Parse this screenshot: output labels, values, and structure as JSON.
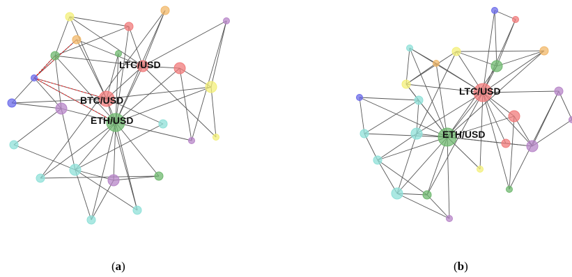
{
  "captions": {
    "a": {
      "open": "(",
      "letter": "a",
      "close": ")"
    },
    "b": {
      "open": "(",
      "letter": "b",
      "close": ")"
    }
  },
  "colors": {
    "red": "#f07b7b",
    "green": "#6fb86f",
    "purple": "#b785c8",
    "cyan": "#8fe0d8",
    "blue": "#6b6bea",
    "yellow": "#f3ef7a",
    "orange": "#f1b86a",
    "edge": "#555555",
    "highlight": "#e02020"
  },
  "graphs": [
    {
      "id": "a",
      "labels": [
        {
          "node": "btc",
          "text": "BTC/USD"
        },
        {
          "node": "eth",
          "text": "ETH/USD"
        },
        {
          "node": "ltc",
          "text": "LTC/USD"
        }
      ],
      "nodes": [
        {
          "id": "y1",
          "color": "yellow",
          "size": "s"
        },
        {
          "id": "o1",
          "color": "orange",
          "size": "s"
        },
        {
          "id": "r1",
          "color": "red",
          "size": "s"
        },
        {
          "id": "p1",
          "color": "purple",
          "size": "xs"
        },
        {
          "id": "g1",
          "color": "green",
          "size": "s"
        },
        {
          "id": "o2",
          "color": "orange",
          "size": "s"
        },
        {
          "id": "g2",
          "color": "green",
          "size": "xs"
        },
        {
          "id": "ltc",
          "color": "red",
          "size": "m"
        },
        {
          "id": "r2",
          "color": "red",
          "size": "m"
        },
        {
          "id": "b1",
          "color": "blue",
          "size": "xs"
        },
        {
          "id": "y2",
          "color": "yellow",
          "size": "m"
        },
        {
          "id": "btc",
          "color": "red",
          "size": "l"
        },
        {
          "id": "b2",
          "color": "blue",
          "size": "s"
        },
        {
          "id": "p2",
          "color": "purple",
          "size": "m"
        },
        {
          "id": "eth",
          "color": "green",
          "size": "xl"
        },
        {
          "id": "c1",
          "color": "cyan",
          "size": "s"
        },
        {
          "id": "p3",
          "color": "purple",
          "size": "xs"
        },
        {
          "id": "y3",
          "color": "yellow",
          "size": "xs"
        },
        {
          "id": "c2",
          "color": "cyan",
          "size": "s"
        },
        {
          "id": "c3",
          "color": "cyan",
          "size": "m"
        },
        {
          "id": "c4",
          "color": "cyan",
          "size": "s"
        },
        {
          "id": "p4",
          "color": "purple",
          "size": "m"
        },
        {
          "id": "g3",
          "color": "green",
          "size": "s"
        },
        {
          "id": "c5",
          "color": "cyan",
          "size": "s"
        },
        {
          "id": "c6",
          "color": "cyan",
          "size": "s"
        }
      ],
      "edges": [
        [
          "y1",
          "r1"
        ],
        [
          "y1",
          "ltc"
        ],
        [
          "y1",
          "btc"
        ],
        [
          "o1",
          "b1"
        ],
        [
          "o1",
          "ltc"
        ],
        [
          "o1",
          "btc"
        ],
        [
          "r1",
          "g1"
        ],
        [
          "r1",
          "ltc"
        ],
        [
          "r1",
          "eth"
        ],
        [
          "o2",
          "ltc"
        ],
        [
          "o2",
          "eth"
        ],
        [
          "o2",
          "c4"
        ],
        [
          "p1",
          "ltc"
        ],
        [
          "p1",
          "y2"
        ],
        [
          "p1",
          "p3"
        ],
        [
          "g1",
          "ltc"
        ],
        [
          "g1",
          "eth"
        ],
        [
          "g1",
          "p2"
        ],
        [
          "g2",
          "eth"
        ],
        [
          "g2",
          "btc"
        ],
        [
          "ltc",
          "r2"
        ],
        [
          "ltc",
          "eth"
        ],
        [
          "ltc",
          "btc"
        ],
        [
          "ltc",
          "y3"
        ],
        [
          "r2",
          "eth"
        ],
        [
          "r2",
          "y2"
        ],
        [
          "r2",
          "p3"
        ],
        [
          "b1",
          "btc"
        ],
        [
          "b1",
          "p2"
        ],
        [
          "b1",
          "eth"
        ],
        [
          "y2",
          "eth"
        ],
        [
          "y2",
          "y3"
        ],
        [
          "y2",
          "btc"
        ],
        [
          "btc",
          "b2"
        ],
        [
          "btc",
          "eth"
        ],
        [
          "btc",
          "c2"
        ],
        [
          "btc",
          "c5"
        ],
        [
          "b2",
          "p2"
        ],
        [
          "p2",
          "eth"
        ],
        [
          "p2",
          "c1"
        ],
        [
          "p2",
          "c3"
        ],
        [
          "eth",
          "c3"
        ],
        [
          "eth",
          "c4"
        ],
        [
          "eth",
          "p4"
        ],
        [
          "eth",
          "g3"
        ],
        [
          "eth",
          "c5"
        ],
        [
          "eth",
          "c6"
        ],
        [
          "eth",
          "p3"
        ],
        [
          "c1",
          "c3"
        ],
        [
          "c2",
          "c3"
        ],
        [
          "c3",
          "p4"
        ],
        [
          "c3",
          "c6"
        ],
        [
          "c3",
          "c5"
        ],
        [
          "p4",
          "g3"
        ],
        [
          "p4",
          "c6"
        ],
        [
          "c4",
          "g3"
        ],
        [
          "g1",
          "b2"
        ],
        [
          "y1",
          "g1"
        ]
      ],
      "highlight_edges": [
        [
          "b1",
          "o1"
        ],
        [
          "b1",
          "g1"
        ],
        [
          "b1",
          "btc"
        ],
        [
          "b1",
          "eth"
        ]
      ]
    },
    {
      "id": "b",
      "labels": [
        {
          "node": "ltc",
          "text": "LTC/USD"
        },
        {
          "node": "eth",
          "text": "ETH/USD"
        }
      ],
      "nodes": [
        {
          "id": "b1",
          "color": "blue",
          "size": "xs"
        },
        {
          "id": "r1",
          "color": "red",
          "size": "xs"
        },
        {
          "id": "o1",
          "color": "orange",
          "size": "s"
        },
        {
          "id": "c1",
          "color": "cyan",
          "size": "xs"
        },
        {
          "id": "y1",
          "color": "yellow",
          "size": "s"
        },
        {
          "id": "o2",
          "color": "orange",
          "size": "xs"
        },
        {
          "id": "g1",
          "color": "green",
          "size": "m"
        },
        {
          "id": "y2",
          "color": "yellow",
          "size": "s"
        },
        {
          "id": "ltc",
          "color": "red",
          "size": "xl"
        },
        {
          "id": "p1",
          "color": "purple",
          "size": "s"
        },
        {
          "id": "c2",
          "color": "cyan",
          "size": "s"
        },
        {
          "id": "b2",
          "color": "blue",
          "size": "xs"
        },
        {
          "id": "r2",
          "color": "red",
          "size": "m"
        },
        {
          "id": "p2",
          "color": "purple",
          "size": "xs"
        },
        {
          "id": "c3",
          "color": "cyan",
          "size": "s"
        },
        {
          "id": "c4",
          "color": "cyan",
          "size": "m"
        },
        {
          "id": "eth",
          "color": "green",
          "size": "xl"
        },
        {
          "id": "r3",
          "color": "red",
          "size": "s"
        },
        {
          "id": "p3",
          "color": "purple",
          "size": "m"
        },
        {
          "id": "y3",
          "color": "yellow",
          "size": "xs"
        },
        {
          "id": "c5",
          "color": "cyan",
          "size": "s"
        },
        {
          "id": "g2",
          "color": "green",
          "size": "xs"
        },
        {
          "id": "c6",
          "color": "cyan",
          "size": "m"
        },
        {
          "id": "g3",
          "color": "green",
          "size": "s"
        },
        {
          "id": "p4",
          "color": "purple",
          "size": "xs"
        }
      ],
      "edges": [
        [
          "b1",
          "ltc"
        ],
        [
          "b1",
          "r1"
        ],
        [
          "b1",
          "g1"
        ],
        [
          "r1",
          "g1"
        ],
        [
          "r1",
          "ltc"
        ],
        [
          "o1",
          "g1"
        ],
        [
          "o1",
          "ltc"
        ],
        [
          "o1",
          "y1"
        ],
        [
          "o1",
          "eth"
        ],
        [
          "c1",
          "o2"
        ],
        [
          "c1",
          "y2"
        ],
        [
          "c1",
          "ltc"
        ],
        [
          "c1",
          "eth"
        ],
        [
          "y1",
          "g1"
        ],
        [
          "y1",
          "y2"
        ],
        [
          "y1",
          "ltc"
        ],
        [
          "y1",
          "c4"
        ],
        [
          "o2",
          "y2"
        ],
        [
          "o2",
          "ltc"
        ],
        [
          "o2",
          "eth"
        ],
        [
          "g1",
          "ltc"
        ],
        [
          "g1",
          "eth"
        ],
        [
          "y2",
          "c2"
        ],
        [
          "y2",
          "eth"
        ],
        [
          "y2",
          "ltc"
        ],
        [
          "ltc",
          "eth"
        ],
        [
          "ltc",
          "p1"
        ],
        [
          "ltc",
          "r2"
        ],
        [
          "ltc",
          "r3"
        ],
        [
          "ltc",
          "p3"
        ],
        [
          "ltc",
          "c4"
        ],
        [
          "ltc",
          "y3"
        ],
        [
          "ltc",
          "g2"
        ],
        [
          "ltc",
          "g3"
        ],
        [
          "p1",
          "p3"
        ],
        [
          "p1",
          "p2"
        ],
        [
          "p1",
          "g2"
        ],
        [
          "c2",
          "b2"
        ],
        [
          "c2",
          "eth"
        ],
        [
          "c2",
          "c3"
        ],
        [
          "c2",
          "c4"
        ],
        [
          "b2",
          "c3"
        ],
        [
          "b2",
          "eth"
        ],
        [
          "r2",
          "eth"
        ],
        [
          "r2",
          "p3"
        ],
        [
          "r2",
          "g2"
        ],
        [
          "r3",
          "eth"
        ],
        [
          "r3",
          "p3"
        ],
        [
          "p3",
          "p2"
        ],
        [
          "c3",
          "eth"
        ],
        [
          "c3",
          "c5"
        ],
        [
          "c4",
          "eth"
        ],
        [
          "c4",
          "c5"
        ],
        [
          "c4",
          "c6"
        ],
        [
          "eth",
          "y3"
        ],
        [
          "eth",
          "c5"
        ],
        [
          "eth",
          "c6"
        ],
        [
          "eth",
          "g3"
        ],
        [
          "eth",
          "p4"
        ],
        [
          "eth",
          "p3"
        ],
        [
          "c5",
          "c6"
        ],
        [
          "c5",
          "g3"
        ],
        [
          "c6",
          "g3"
        ],
        [
          "c6",
          "p4"
        ],
        [
          "g3",
          "p4"
        ]
      ],
      "highlight_edges": []
    }
  ]
}
